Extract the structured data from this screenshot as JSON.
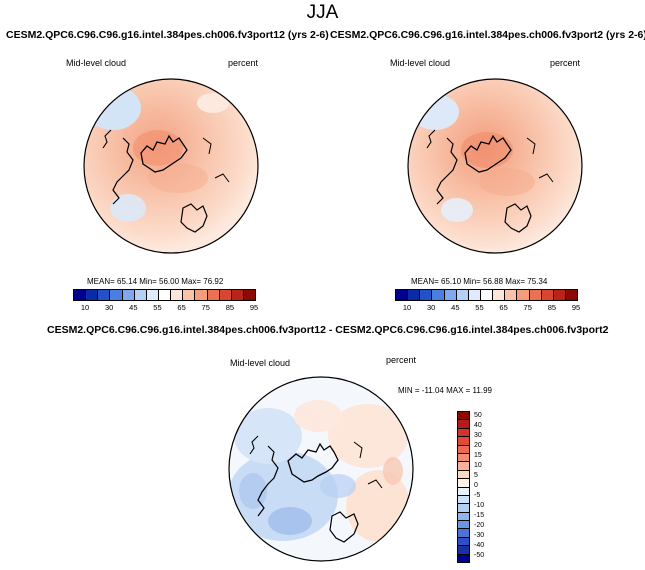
{
  "figure_title": "JJA",
  "panels": {
    "left": {
      "title": "CESM2.QPC6.C96.C96.g16.intel.384pes.ch006.fv3port12 (yrs 2-6)",
      "field": "Mid-level cloud",
      "units": "percent",
      "stats": "MEAN= 65.14  Min= 56.00  Max= 76.92"
    },
    "right": {
      "title": "CESM2.QPC6.C96.C96.g16.intel.384pes.ch006.fv3port2 (yrs 2-6)",
      "field": "Mid-level cloud",
      "units": "percent",
      "stats": "MEAN= 65.10  Min= 56.88  Max= 75.34"
    },
    "diff": {
      "title": "CESM2.QPC6.C96.C96.g16.intel.384pes.ch006.fv3port12 - CESM2.QPC6.C96.C96.g16.intel.384pes.ch006.fv3port2",
      "field": "Mid-level cloud",
      "units": "percent",
      "stats": "MIN = -11.04 MAX =  11.99"
    }
  },
  "colorbar_main": {
    "labels": [
      "10",
      "30",
      "45",
      "55",
      "65",
      "75",
      "85",
      "95"
    ],
    "colors": [
      "#00008c",
      "#0a2aa8",
      "#2352c8",
      "#4a7ee0",
      "#7fa8ee",
      "#b4d0f7",
      "#dfeafb",
      "#ffffff",
      "#fde5d9",
      "#fbc2a8",
      "#f59c7b",
      "#ec7053",
      "#d84531",
      "#b8231a",
      "#8a0a05"
    ]
  },
  "colorbar_diff": {
    "labels": [
      "50",
      "40",
      "30",
      "20",
      "15",
      "10",
      "5",
      "0",
      "-5",
      "-10",
      "-15",
      "-20",
      "-30",
      "-40",
      "-50"
    ],
    "colors": [
      "#8a0a05",
      "#b8191a",
      "#d0342c",
      "#e04a3a",
      "#ec6a55",
      "#f28c72",
      "#f7b298",
      "#fad8c6",
      "#fff2ea",
      "#e8f1fc",
      "#cfe2f8",
      "#b2cef3",
      "#90b5ec",
      "#6c95e2",
      "#4b72d6",
      "#2d4fc2",
      "#1a2fa4",
      "#00008c"
    ]
  }
}
